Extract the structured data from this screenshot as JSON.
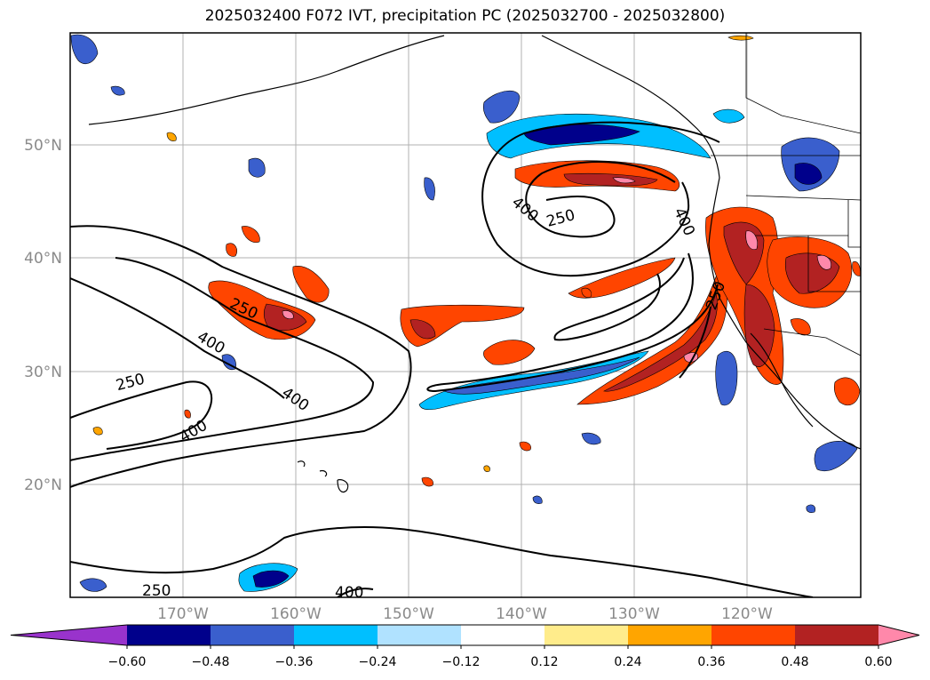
{
  "title": "2025032400 F072 IVT, precipitation PC (2025032700 - 2025032800)",
  "map": {
    "lon_ticks": [
      "170°W",
      "160°W",
      "150°W",
      "140°W",
      "130°W",
      "120°W"
    ],
    "lat_ticks": [
      "50°N",
      "40°N",
      "30°N",
      "20°N"
    ],
    "gridlines": true,
    "contour_labels": [
      "250",
      "400"
    ]
  },
  "colorbar": {
    "colors": [
      "#9933cc",
      "#00008b",
      "#3a5fcd",
      "#00bfff",
      "#b0e2ff",
      "#ffffff",
      "#ffec8b",
      "#ffa500",
      "#ff4500",
      "#b22222",
      "#ff88aa"
    ],
    "tick_labels": [
      "−0.60",
      "−0.48",
      "−0.36",
      "−0.24",
      "−0.12",
      "0.12",
      "0.24",
      "0.36",
      "0.48",
      "0.60"
    ]
  }
}
